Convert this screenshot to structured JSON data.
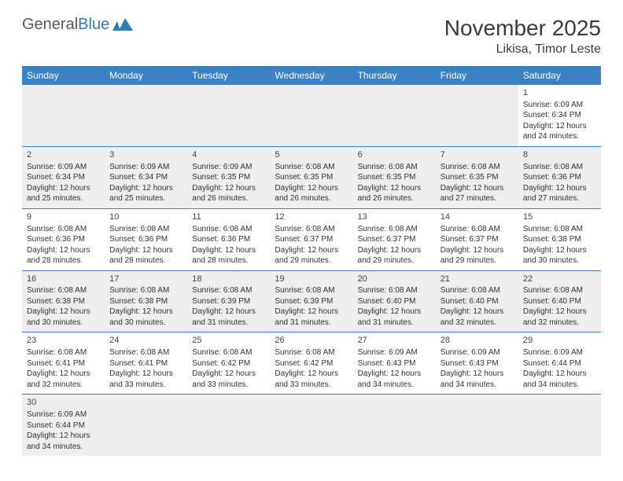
{
  "logo": {
    "text_general": "General",
    "text_blue": "Blue"
  },
  "header": {
    "month_title": "November 2025",
    "location": "Likisa, Timor Leste"
  },
  "colors": {
    "header_bar": "#3b82c4",
    "header_text": "#ffffff",
    "gray_bg": "#eeeeee",
    "row_border": "#3b82c4",
    "body_text": "#333333",
    "title_text": "#3a3a3a",
    "logo_gray": "#5a5a5a",
    "logo_blue": "#2f7bbf"
  },
  "day_headers": [
    "Sunday",
    "Monday",
    "Tuesday",
    "Wednesday",
    "Thursday",
    "Friday",
    "Saturday"
  ],
  "weeks": [
    [
      null,
      null,
      null,
      null,
      null,
      null,
      {
        "n": "1",
        "sunrise": "Sunrise: 6:09 AM",
        "sunset": "Sunset: 6:34 PM",
        "d1": "Daylight: 12 hours",
        "d2": "and 24 minutes."
      }
    ],
    [
      {
        "n": "2",
        "sunrise": "Sunrise: 6:09 AM",
        "sunset": "Sunset: 6:34 PM",
        "d1": "Daylight: 12 hours",
        "d2": "and 25 minutes."
      },
      {
        "n": "3",
        "sunrise": "Sunrise: 6:09 AM",
        "sunset": "Sunset: 6:34 PM",
        "d1": "Daylight: 12 hours",
        "d2": "and 25 minutes."
      },
      {
        "n": "4",
        "sunrise": "Sunrise: 6:09 AM",
        "sunset": "Sunset: 6:35 PM",
        "d1": "Daylight: 12 hours",
        "d2": "and 26 minutes."
      },
      {
        "n": "5",
        "sunrise": "Sunrise: 6:08 AM",
        "sunset": "Sunset: 6:35 PM",
        "d1": "Daylight: 12 hours",
        "d2": "and 26 minutes."
      },
      {
        "n": "6",
        "sunrise": "Sunrise: 6:08 AM",
        "sunset": "Sunset: 6:35 PM",
        "d1": "Daylight: 12 hours",
        "d2": "and 26 minutes."
      },
      {
        "n": "7",
        "sunrise": "Sunrise: 6:08 AM",
        "sunset": "Sunset: 6:35 PM",
        "d1": "Daylight: 12 hours",
        "d2": "and 27 minutes."
      },
      {
        "n": "8",
        "sunrise": "Sunrise: 6:08 AM",
        "sunset": "Sunset: 6:36 PM",
        "d1": "Daylight: 12 hours",
        "d2": "and 27 minutes."
      }
    ],
    [
      {
        "n": "9",
        "sunrise": "Sunrise: 6:08 AM",
        "sunset": "Sunset: 6:36 PM",
        "d1": "Daylight: 12 hours",
        "d2": "and 28 minutes."
      },
      {
        "n": "10",
        "sunrise": "Sunrise: 6:08 AM",
        "sunset": "Sunset: 6:36 PM",
        "d1": "Daylight: 12 hours",
        "d2": "and 28 minutes."
      },
      {
        "n": "11",
        "sunrise": "Sunrise: 6:08 AM",
        "sunset": "Sunset: 6:36 PM",
        "d1": "Daylight: 12 hours",
        "d2": "and 28 minutes."
      },
      {
        "n": "12",
        "sunrise": "Sunrise: 6:08 AM",
        "sunset": "Sunset: 6:37 PM",
        "d1": "Daylight: 12 hours",
        "d2": "and 29 minutes."
      },
      {
        "n": "13",
        "sunrise": "Sunrise: 6:08 AM",
        "sunset": "Sunset: 6:37 PM",
        "d1": "Daylight: 12 hours",
        "d2": "and 29 minutes."
      },
      {
        "n": "14",
        "sunrise": "Sunrise: 6:08 AM",
        "sunset": "Sunset: 6:37 PM",
        "d1": "Daylight: 12 hours",
        "d2": "and 29 minutes."
      },
      {
        "n": "15",
        "sunrise": "Sunrise: 6:08 AM",
        "sunset": "Sunset: 6:38 PM",
        "d1": "Daylight: 12 hours",
        "d2": "and 30 minutes."
      }
    ],
    [
      {
        "n": "16",
        "sunrise": "Sunrise: 6:08 AM",
        "sunset": "Sunset: 6:38 PM",
        "d1": "Daylight: 12 hours",
        "d2": "and 30 minutes."
      },
      {
        "n": "17",
        "sunrise": "Sunrise: 6:08 AM",
        "sunset": "Sunset: 6:38 PM",
        "d1": "Daylight: 12 hours",
        "d2": "and 30 minutes."
      },
      {
        "n": "18",
        "sunrise": "Sunrise: 6:08 AM",
        "sunset": "Sunset: 6:39 PM",
        "d1": "Daylight: 12 hours",
        "d2": "and 31 minutes."
      },
      {
        "n": "19",
        "sunrise": "Sunrise: 6:08 AM",
        "sunset": "Sunset: 6:39 PM",
        "d1": "Daylight: 12 hours",
        "d2": "and 31 minutes."
      },
      {
        "n": "20",
        "sunrise": "Sunrise: 6:08 AM",
        "sunset": "Sunset: 6:40 PM",
        "d1": "Daylight: 12 hours",
        "d2": "and 31 minutes."
      },
      {
        "n": "21",
        "sunrise": "Sunrise: 6:08 AM",
        "sunset": "Sunset: 6:40 PM",
        "d1": "Daylight: 12 hours",
        "d2": "and 32 minutes."
      },
      {
        "n": "22",
        "sunrise": "Sunrise: 6:08 AM",
        "sunset": "Sunset: 6:40 PM",
        "d1": "Daylight: 12 hours",
        "d2": "and 32 minutes."
      }
    ],
    [
      {
        "n": "23",
        "sunrise": "Sunrise: 6:08 AM",
        "sunset": "Sunset: 6:41 PM",
        "d1": "Daylight: 12 hours",
        "d2": "and 32 minutes."
      },
      {
        "n": "24",
        "sunrise": "Sunrise: 6:08 AM",
        "sunset": "Sunset: 6:41 PM",
        "d1": "Daylight: 12 hours",
        "d2": "and 33 minutes."
      },
      {
        "n": "25",
        "sunrise": "Sunrise: 6:08 AM",
        "sunset": "Sunset: 6:42 PM",
        "d1": "Daylight: 12 hours",
        "d2": "and 33 minutes."
      },
      {
        "n": "26",
        "sunrise": "Sunrise: 6:08 AM",
        "sunset": "Sunset: 6:42 PM",
        "d1": "Daylight: 12 hours",
        "d2": "and 33 minutes."
      },
      {
        "n": "27",
        "sunrise": "Sunrise: 6:09 AM",
        "sunset": "Sunset: 6:43 PM",
        "d1": "Daylight: 12 hours",
        "d2": "and 34 minutes."
      },
      {
        "n": "28",
        "sunrise": "Sunrise: 6:09 AM",
        "sunset": "Sunset: 6:43 PM",
        "d1": "Daylight: 12 hours",
        "d2": "and 34 minutes."
      },
      {
        "n": "29",
        "sunrise": "Sunrise: 6:09 AM",
        "sunset": "Sunset: 6:44 PM",
        "d1": "Daylight: 12 hours",
        "d2": "and 34 minutes."
      }
    ],
    [
      {
        "n": "30",
        "sunrise": "Sunrise: 6:09 AM",
        "sunset": "Sunset: 6:44 PM",
        "d1": "Daylight: 12 hours",
        "d2": "and 34 minutes."
      },
      null,
      null,
      null,
      null,
      null,
      null
    ]
  ]
}
